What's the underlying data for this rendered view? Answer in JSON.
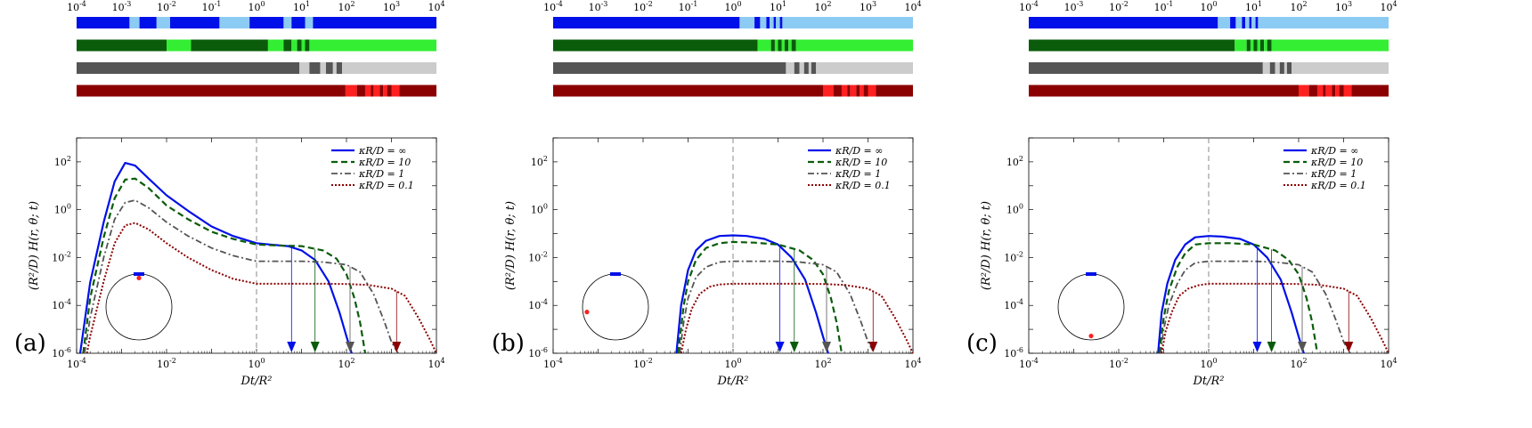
{
  "figure": {
    "panel_labels": [
      "(a)",
      "(b)",
      "(c)"
    ],
    "exponent_base": "10",
    "colors": {
      "blue": "#0010e8",
      "blue_light": "#8ccbf3",
      "green": "#0a5c0a",
      "green_light": "#33ee33",
      "gray": "#555555",
      "gray_light": "#cccccc",
      "red": "#8b0000",
      "red_light": "#ff2020",
      "dashed_ref": "#888888"
    }
  },
  "chart_data": [
    {
      "type": "line",
      "panel": "(a)",
      "xlabel": "Dt/R²",
      "ylabel": "(R²/D) H(r, θ; t)",
      "xscale": "log",
      "yscale": "log",
      "xlim": [
        0.0001,
        10000
      ],
      "ylim": [
        1e-06,
        1000
      ],
      "x_tick_exponents": [
        -4,
        -3,
        -2,
        -1,
        0,
        1,
        2,
        3,
        4
      ],
      "x_labeled_exponents": [
        -4,
        -2,
        0,
        2,
        4
      ],
      "y_tick_exponents": [
        -6,
        -4,
        -2,
        0,
        2
      ],
      "legend": [
        "κR/D = ∞",
        "κR/D = 10",
        "κR/D = 1",
        "κR/D = 0.1"
      ],
      "vertical_reference_x": 1,
      "series": [
        {
          "name": "κR/D = ∞",
          "style": "solid",
          "color": "blue",
          "x": [
            0.00012,
            0.0002,
            0.0004,
            0.0007,
            0.0012,
            0.002,
            0.004,
            0.01,
            0.03,
            0.1,
            0.3,
            1,
            2,
            5,
            10,
            20,
            40,
            70,
            100,
            130
          ],
          "y": [
            1e-06,
            0.0009,
            0.3,
            15,
            90,
            70,
            20,
            4,
            0.9,
            0.2,
            0.08,
            0.04,
            0.035,
            0.03,
            0.02,
            0.008,
            0.001,
            5e-05,
            5e-06,
            1e-06
          ]
        },
        {
          "name": "κR/D = 10",
          "style": "dashed",
          "color": "green",
          "x": [
            0.00014,
            0.0002,
            0.0004,
            0.0007,
            0.0012,
            0.002,
            0.004,
            0.01,
            0.03,
            0.1,
            0.3,
            1,
            3,
            10,
            30,
            60,
            100,
            150,
            200,
            260
          ],
          "y": [
            1e-06,
            0.0002,
            0.07,
            3,
            18,
            20,
            8,
            1.5,
            0.4,
            0.12,
            0.06,
            0.035,
            0.032,
            0.03,
            0.02,
            0.009,
            0.002,
            0.0002,
            2e-05,
            1e-06
          ]
        },
        {
          "name": "κR/D = 1",
          "style": "dashdot",
          "color": "gray",
          "x": [
            0.00015,
            0.0002,
            0.0004,
            0.0007,
            0.0012,
            0.002,
            0.004,
            0.01,
            0.03,
            0.1,
            0.3,
            1,
            3,
            10,
            30,
            100,
            200,
            400,
            700,
            1000,
            1400
          ],
          "y": [
            1e-06,
            3e-05,
            0.01,
            0.4,
            2,
            2.5,
            1.2,
            0.3,
            0.08,
            0.025,
            0.012,
            0.007,
            0.007,
            0.007,
            0.0065,
            0.005,
            0.0025,
            0.0003,
            2e-05,
            3e-06,
            1e-06
          ]
        },
        {
          "name": "κR/D = 0.1",
          "style": "dotted",
          "color": "red",
          "x": [
            0.00017,
            0.0002,
            0.0004,
            0.0007,
            0.0012,
            0.002,
            0.004,
            0.01,
            0.03,
            0.1,
            0.3,
            1,
            3,
            10,
            30,
            100,
            300,
            1000,
            2000,
            4000,
            7000,
            10000
          ],
          "y": [
            1e-06,
            5e-06,
            0.001,
            0.04,
            0.22,
            0.28,
            0.15,
            0.04,
            0.01,
            0.003,
            0.0013,
            0.0008,
            0.0008,
            0.0008,
            0.0008,
            0.00078,
            0.00072,
            0.0005,
            0.00025,
            3e-05,
            4e-06,
            1e-06
          ]
        }
      ],
      "arrows_x": [
        6,
        20,
        120,
        1300
      ],
      "inset_point_angle_deg": 0,
      "inset_point_radius": 0.88,
      "bars": [
        {
          "color": "blue",
          "x_edges": [
            0.0001,
            0.0015,
            0.0025,
            0.006,
            0.012,
            0.15,
            0.7,
            4,
            6,
            12,
            18,
            10000
          ]
        },
        {
          "color": "green",
          "x_edges": [
            0.0001,
            0.01,
            0.035,
            1.8,
            4,
            6,
            8,
            10,
            12,
            15,
            10000
          ]
        },
        {
          "color": "gray",
          "x_edges": [
            0.0001,
            9,
            15,
            26,
            35,
            50,
            60,
            80,
            10000
          ]
        },
        {
          "color": "red",
          "x_edges": [
            0.0001,
            95,
            170,
            260,
            350,
            400,
            550,
            650,
            800,
            1000,
            1500,
            10000
          ]
        }
      ]
    },
    {
      "type": "line",
      "panel": "(b)",
      "xlabel": "Dt/R²",
      "ylabel": "(R²/D) H(r, θ; t)",
      "xscale": "log",
      "yscale": "log",
      "xlim": [
        0.0001,
        10000
      ],
      "ylim": [
        1e-06,
        1000
      ],
      "x_tick_exponents": [
        -4,
        -3,
        -2,
        -1,
        0,
        1,
        2,
        3,
        4
      ],
      "x_labeled_exponents": [
        -4,
        -2,
        0,
        2,
        4
      ],
      "y_tick_exponents": [
        -6,
        -4,
        -2,
        0,
        2
      ],
      "legend": [
        "κR/D = ∞",
        "κR/D = 10",
        "κR/D = 1",
        "κR/D = 0.1"
      ],
      "vertical_reference_x": 1,
      "series": [
        {
          "name": "κR/D = ∞",
          "style": "solid",
          "color": "blue",
          "x": [
            0.055,
            0.07,
            0.1,
            0.15,
            0.25,
            0.5,
            1,
            2,
            5,
            10,
            20,
            40,
            70,
            100,
            130
          ],
          "y": [
            1e-06,
            0.0001,
            0.003,
            0.02,
            0.05,
            0.08,
            0.085,
            0.08,
            0.06,
            0.035,
            0.01,
            0.0012,
            5e-05,
            5e-06,
            1e-06
          ]
        },
        {
          "name": "κR/D = 10",
          "style": "dashed",
          "color": "green",
          "x": [
            0.06,
            0.08,
            0.1,
            0.15,
            0.25,
            0.5,
            1,
            3,
            10,
            30,
            60,
            100,
            150,
            200,
            260
          ],
          "y": [
            1e-06,
            0.0001,
            0.001,
            0.008,
            0.025,
            0.04,
            0.045,
            0.042,
            0.035,
            0.02,
            0.008,
            0.002,
            0.0002,
            2e-05,
            1e-06
          ]
        },
        {
          "name": "κR/D = 1",
          "style": "dashdot",
          "color": "gray",
          "x": [
            0.065,
            0.08,
            0.1,
            0.15,
            0.25,
            0.5,
            1,
            3,
            10,
            30,
            100,
            200,
            400,
            700,
            1000,
            1400
          ],
          "y": [
            1e-06,
            2e-05,
            0.0002,
            0.0015,
            0.004,
            0.0065,
            0.007,
            0.007,
            0.007,
            0.0065,
            0.005,
            0.0025,
            0.0003,
            2e-05,
            3e-06,
            1e-06
          ]
        },
        {
          "name": "κR/D = 0.1",
          "style": "dotted",
          "color": "red",
          "x": [
            0.07,
            0.09,
            0.12,
            0.18,
            0.3,
            0.5,
            1,
            3,
            10,
            30,
            100,
            300,
            1000,
            2000,
            4000,
            7000,
            10000
          ],
          "y": [
            1e-06,
            1e-05,
            7e-05,
            0.0003,
            0.0006,
            0.00075,
            0.0008,
            0.0008,
            0.0008,
            0.0008,
            0.00078,
            0.00072,
            0.0005,
            0.00025,
            3e-05,
            4e-06,
            1e-06
          ]
        }
      ],
      "arrows_x": [
        11,
        23,
        120,
        1300
      ],
      "inset_point_angle_deg": 100,
      "inset_point_radius": 0.88,
      "bars": [
        {
          "color": "blue",
          "x_edges": [
            0.0001,
            1.4,
            3,
            4,
            5.5,
            6.5,
            8,
            9,
            11,
            12.5,
            10000
          ]
        },
        {
          "color": "green",
          "x_edges": [
            0.0001,
            3.5,
            7,
            8.5,
            10,
            12,
            14,
            17,
            20,
            25,
            10000
          ]
        },
        {
          "color": "gray",
          "x_edges": [
            0.0001,
            15,
            23,
            30,
            38,
            48,
            55,
            70,
            10000
          ]
        },
        {
          "color": "red",
          "x_edges": [
            0.0001,
            100,
            170,
            260,
            350,
            400,
            550,
            650,
            800,
            1000,
            1500,
            10000
          ]
        }
      ]
    },
    {
      "type": "line",
      "panel": "(c)",
      "xlabel": "Dt/R²",
      "ylabel": "(R²/D) H(r, θ; t)",
      "xscale": "log",
      "yscale": "log",
      "xlim": [
        0.0001,
        10000
      ],
      "ylim": [
        1e-06,
        1000
      ],
      "x_tick_exponents": [
        -4,
        -3,
        -2,
        -1,
        0,
        1,
        2,
        3,
        4
      ],
      "x_labeled_exponents": [
        -4,
        -2,
        0,
        2,
        4
      ],
      "y_tick_exponents": [
        -6,
        -4,
        -2,
        0,
        2
      ],
      "legend": [
        "κR/D = ∞",
        "κR/D = 10",
        "κR/D = 1",
        "κR/D = 0.1"
      ],
      "vertical_reference_x": 1,
      "series": [
        {
          "name": "κR/D = ∞",
          "style": "solid",
          "color": "blue",
          "x": [
            0.075,
            0.09,
            0.12,
            0.18,
            0.3,
            0.5,
            1,
            2,
            5,
            10,
            20,
            40,
            70,
            100,
            130
          ],
          "y": [
            1e-06,
            5e-05,
            0.0008,
            0.008,
            0.035,
            0.07,
            0.08,
            0.075,
            0.06,
            0.035,
            0.01,
            0.0012,
            5e-05,
            5e-06,
            1e-06
          ]
        },
        {
          "name": "κR/D = 10",
          "style": "dashed",
          "color": "green",
          "x": [
            0.08,
            0.1,
            0.13,
            0.2,
            0.3,
            0.5,
            1,
            3,
            10,
            30,
            60,
            100,
            150,
            200,
            260
          ],
          "y": [
            1e-06,
            3e-05,
            0.0004,
            0.004,
            0.015,
            0.035,
            0.04,
            0.04,
            0.035,
            0.02,
            0.008,
            0.002,
            0.0002,
            2e-05,
            1e-06
          ]
        },
        {
          "name": "κR/D = 1",
          "style": "dashdot",
          "color": "gray",
          "x": [
            0.085,
            0.1,
            0.13,
            0.2,
            0.3,
            0.5,
            1,
            3,
            10,
            30,
            100,
            200,
            400,
            700,
            1000,
            1400
          ],
          "y": [
            1e-06,
            1e-05,
            0.0001,
            0.0008,
            0.003,
            0.006,
            0.007,
            0.007,
            0.007,
            0.0065,
            0.005,
            0.0025,
            0.0003,
            2e-05,
            3e-06,
            1e-06
          ]
        },
        {
          "name": "κR/D = 0.1",
          "style": "dotted",
          "color": "red",
          "x": [
            0.09,
            0.11,
            0.15,
            0.22,
            0.35,
            0.6,
            1,
            3,
            10,
            30,
            100,
            300,
            1000,
            2000,
            4000,
            7000,
            10000
          ],
          "y": [
            1e-06,
            8e-06,
            5e-05,
            0.00025,
            0.0005,
            0.0007,
            0.0008,
            0.0008,
            0.0008,
            0.0008,
            0.00078,
            0.00072,
            0.0005,
            0.00025,
            3e-05,
            4e-06,
            1e-06
          ]
        }
      ],
      "arrows_x": [
        12,
        25,
        120,
        1300
      ],
      "inset_point_angle_deg": 180,
      "inset_point_radius": 0.88,
      "bars": [
        {
          "color": "blue",
          "x_edges": [
            0.0001,
            1.6,
            3,
            4,
            5.5,
            6.5,
            8,
            9,
            11,
            12.5,
            10000
          ]
        },
        {
          "color": "green",
          "x_edges": [
            0.0001,
            3.8,
            7,
            8.5,
            10,
            12,
            14,
            17,
            20,
            25,
            10000
          ]
        },
        {
          "color": "gray",
          "x_edges": [
            0.0001,
            16,
            23,
            30,
            38,
            48,
            55,
            70,
            10000
          ]
        },
        {
          "color": "red",
          "x_edges": [
            0.0001,
            100,
            170,
            260,
            350,
            400,
            550,
            650,
            800,
            1000,
            1500,
            10000
          ]
        }
      ]
    }
  ]
}
